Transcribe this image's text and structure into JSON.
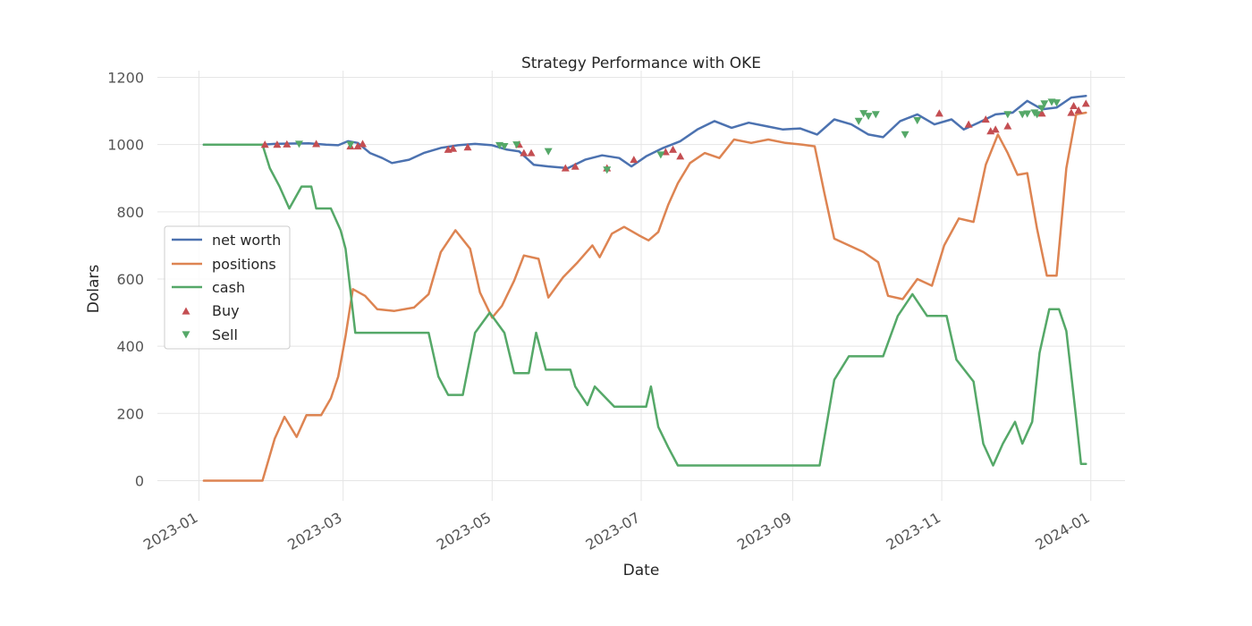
{
  "chart_data": {
    "type": "line",
    "title": "Strategy Performance with OKE",
    "xlabel": "Date",
    "ylabel": "Dolars",
    "xlim": [
      "2022-12-15",
      "2024-01-15"
    ],
    "ylim": [
      -60,
      1220
    ],
    "xticks": [
      "2023-01",
      "2023-03",
      "2023-05",
      "2023-07",
      "2023-09",
      "2023-11",
      "2024-01"
    ],
    "yticks": [
      0,
      200,
      400,
      600,
      800,
      1000,
      1200
    ],
    "grid": true,
    "legend_position": "center-left",
    "colors": {
      "net_worth": "#4c72b0",
      "positions": "#dd8452",
      "cash": "#55a868",
      "buy": "#c44e52",
      "sell": "#55a868",
      "grid": "#e5e5e5"
    },
    "series": [
      {
        "name": "net worth",
        "key": "net_worth",
        "points": [
          [
            "2023-01-03",
            1000
          ],
          [
            "2023-01-20",
            1000
          ],
          [
            "2023-01-27",
            1000
          ],
          [
            "2023-02-01",
            1002
          ],
          [
            "2023-02-08",
            1003
          ],
          [
            "2023-02-15",
            1004
          ],
          [
            "2023-02-22",
            1000
          ],
          [
            "2023-02-27",
            998
          ],
          [
            "2023-03-03",
            1010
          ],
          [
            "2023-03-07",
            1005
          ],
          [
            "2023-03-12",
            975
          ],
          [
            "2023-03-17",
            960
          ],
          [
            "2023-03-21",
            945
          ],
          [
            "2023-03-28",
            955
          ],
          [
            "2023-04-03",
            975
          ],
          [
            "2023-04-10",
            990
          ],
          [
            "2023-04-17",
            998
          ],
          [
            "2023-04-24",
            1002
          ],
          [
            "2023-05-01",
            998
          ],
          [
            "2023-05-07",
            985
          ],
          [
            "2023-05-12",
            980
          ],
          [
            "2023-05-18",
            940
          ],
          [
            "2023-05-24",
            935
          ],
          [
            "2023-06-01",
            930
          ],
          [
            "2023-06-08",
            955
          ],
          [
            "2023-06-15",
            968
          ],
          [
            "2023-06-22",
            960
          ],
          [
            "2023-06-27",
            935
          ],
          [
            "2023-07-03",
            965
          ],
          [
            "2023-07-10",
            990
          ],
          [
            "2023-07-17",
            1010
          ],
          [
            "2023-07-24",
            1045
          ],
          [
            "2023-07-31",
            1070
          ],
          [
            "2023-08-07",
            1050
          ],
          [
            "2023-08-14",
            1065
          ],
          [
            "2023-08-21",
            1055
          ],
          [
            "2023-08-28",
            1045
          ],
          [
            "2023-09-04",
            1048
          ],
          [
            "2023-09-11",
            1030
          ],
          [
            "2023-09-18",
            1075
          ],
          [
            "2023-09-25",
            1060
          ],
          [
            "2023-10-02",
            1030
          ],
          [
            "2023-10-08",
            1022
          ],
          [
            "2023-10-15",
            1070
          ],
          [
            "2023-10-22",
            1090
          ],
          [
            "2023-10-29",
            1060
          ],
          [
            "2023-11-05",
            1075
          ],
          [
            "2023-11-10",
            1045
          ],
          [
            "2023-11-16",
            1065
          ],
          [
            "2023-11-23",
            1090
          ],
          [
            "2023-11-30",
            1095
          ],
          [
            "2023-12-06",
            1130
          ],
          [
            "2023-12-12",
            1105
          ],
          [
            "2023-12-18",
            1110
          ],
          [
            "2023-12-24",
            1140
          ],
          [
            "2023-12-30",
            1145
          ]
        ]
      },
      {
        "name": "positions",
        "key": "positions",
        "points": [
          [
            "2023-01-03",
            0
          ],
          [
            "2023-01-27",
            0
          ],
          [
            "2023-02-01",
            125
          ],
          [
            "2023-02-05",
            190
          ],
          [
            "2023-02-10",
            130
          ],
          [
            "2023-02-14",
            195
          ],
          [
            "2023-02-20",
            195
          ],
          [
            "2023-02-24",
            245
          ],
          [
            "2023-02-27",
            310
          ],
          [
            "2023-03-02",
            430
          ],
          [
            "2023-03-05",
            570
          ],
          [
            "2023-03-10",
            550
          ],
          [
            "2023-03-15",
            510
          ],
          [
            "2023-03-22",
            505
          ],
          [
            "2023-03-30",
            515
          ],
          [
            "2023-04-05",
            555
          ],
          [
            "2023-04-10",
            680
          ],
          [
            "2023-04-16",
            745
          ],
          [
            "2023-04-22",
            690
          ],
          [
            "2023-04-26",
            560
          ],
          [
            "2023-05-01",
            485
          ],
          [
            "2023-05-05",
            520
          ],
          [
            "2023-05-10",
            595
          ],
          [
            "2023-05-14",
            670
          ],
          [
            "2023-05-20",
            660
          ],
          [
            "2023-05-24",
            545
          ],
          [
            "2023-05-30",
            605
          ],
          [
            "2023-06-05",
            650
          ],
          [
            "2023-06-11",
            700
          ],
          [
            "2023-06-14",
            665
          ],
          [
            "2023-06-19",
            735
          ],
          [
            "2023-06-24",
            755
          ],
          [
            "2023-06-30",
            730
          ],
          [
            "2023-07-04",
            715
          ],
          [
            "2023-07-08",
            740
          ],
          [
            "2023-07-12",
            820
          ],
          [
            "2023-07-16",
            885
          ],
          [
            "2023-07-21",
            945
          ],
          [
            "2023-07-27",
            975
          ],
          [
            "2023-08-02",
            960
          ],
          [
            "2023-08-08",
            1015
          ],
          [
            "2023-08-15",
            1005
          ],
          [
            "2023-08-22",
            1015
          ],
          [
            "2023-08-29",
            1005
          ],
          [
            "2023-09-05",
            1000
          ],
          [
            "2023-09-10",
            995
          ],
          [
            "2023-09-14",
            855
          ],
          [
            "2023-09-18",
            720
          ],
          [
            "2023-09-24",
            700
          ],
          [
            "2023-09-30",
            680
          ],
          [
            "2023-10-06",
            650
          ],
          [
            "2023-10-10",
            550
          ],
          [
            "2023-10-16",
            540
          ],
          [
            "2023-10-22",
            600
          ],
          [
            "2023-10-28",
            580
          ],
          [
            "2023-11-02",
            700
          ],
          [
            "2023-11-08",
            780
          ],
          [
            "2023-11-14",
            770
          ],
          [
            "2023-11-19",
            940
          ],
          [
            "2023-11-24",
            1030
          ],
          [
            "2023-11-28",
            975
          ],
          [
            "2023-12-02",
            910
          ],
          [
            "2023-12-06",
            915
          ],
          [
            "2023-12-10",
            750
          ],
          [
            "2023-12-14",
            610
          ],
          [
            "2023-12-18",
            610
          ],
          [
            "2023-12-22",
            930
          ],
          [
            "2023-12-26",
            1090
          ],
          [
            "2023-12-30",
            1095
          ]
        ]
      },
      {
        "name": "cash",
        "key": "cash",
        "points": [
          [
            "2023-01-03",
            1000
          ],
          [
            "2023-01-27",
            1000
          ],
          [
            "2023-01-30",
            930
          ],
          [
            "2023-02-03",
            875
          ],
          [
            "2023-02-07",
            810
          ],
          [
            "2023-02-12",
            875
          ],
          [
            "2023-02-16",
            875
          ],
          [
            "2023-02-18",
            810
          ],
          [
            "2023-02-24",
            810
          ],
          [
            "2023-02-28",
            745
          ],
          [
            "2023-03-02",
            690
          ],
          [
            "2023-03-06",
            440
          ],
          [
            "2023-04-05",
            440
          ],
          [
            "2023-04-09",
            310
          ],
          [
            "2023-04-13",
            255
          ],
          [
            "2023-04-19",
            255
          ],
          [
            "2023-04-24",
            440
          ],
          [
            "2023-04-30",
            500
          ],
          [
            "2023-05-06",
            440
          ],
          [
            "2023-05-10",
            320
          ],
          [
            "2023-05-16",
            320
          ],
          [
            "2023-05-19",
            440
          ],
          [
            "2023-05-23",
            330
          ],
          [
            "2023-06-02",
            330
          ],
          [
            "2023-06-04",
            280
          ],
          [
            "2023-06-09",
            225
          ],
          [
            "2023-06-12",
            280
          ],
          [
            "2023-06-20",
            220
          ],
          [
            "2023-07-03",
            220
          ],
          [
            "2023-07-05",
            280
          ],
          [
            "2023-07-08",
            160
          ],
          [
            "2023-07-12",
            100
          ],
          [
            "2023-07-16",
            45
          ],
          [
            "2023-09-12",
            45
          ],
          [
            "2023-09-18",
            300
          ],
          [
            "2023-09-24",
            370
          ],
          [
            "2023-10-08",
            370
          ],
          [
            "2023-10-14",
            490
          ],
          [
            "2023-10-20",
            555
          ],
          [
            "2023-10-26",
            490
          ],
          [
            "2023-11-03",
            490
          ],
          [
            "2023-11-07",
            360
          ],
          [
            "2023-11-14",
            295
          ],
          [
            "2023-11-18",
            110
          ],
          [
            "2023-11-22",
            45
          ],
          [
            "2023-11-26",
            110
          ],
          [
            "2023-12-01",
            175
          ],
          [
            "2023-12-04",
            110
          ],
          [
            "2023-12-08",
            175
          ],
          [
            "2023-12-11",
            380
          ],
          [
            "2023-12-15",
            510
          ],
          [
            "2023-12-19",
            510
          ],
          [
            "2023-12-22",
            445
          ],
          [
            "2023-12-26",
            185
          ],
          [
            "2023-12-28",
            50
          ],
          [
            "2023-12-30",
            50
          ]
        ]
      }
    ],
    "markers": [
      {
        "name": "Buy",
        "key": "buy",
        "shape": "triangle-up",
        "points": [
          [
            "2023-01-28",
            1000
          ],
          [
            "2023-02-02",
            1000
          ],
          [
            "2023-02-06",
            1001
          ],
          [
            "2023-02-18",
            1002
          ],
          [
            "2023-03-04",
            995
          ],
          [
            "2023-03-07",
            995
          ],
          [
            "2023-03-09",
            1002
          ],
          [
            "2023-04-13",
            985
          ],
          [
            "2023-04-15",
            988
          ],
          [
            "2023-04-21",
            992
          ],
          [
            "2023-05-12",
            1000
          ],
          [
            "2023-05-14",
            975
          ],
          [
            "2023-05-17",
            975
          ],
          [
            "2023-05-31",
            930
          ],
          [
            "2023-06-04",
            935
          ],
          [
            "2023-06-17",
            930
          ],
          [
            "2023-06-28",
            955
          ],
          [
            "2023-07-11",
            978
          ],
          [
            "2023-07-14",
            985
          ],
          [
            "2023-07-17",
            965
          ],
          [
            "2023-10-31",
            1093
          ],
          [
            "2023-11-12",
            1060
          ],
          [
            "2023-11-19",
            1075
          ],
          [
            "2023-11-21",
            1040
          ],
          [
            "2023-11-23",
            1045
          ],
          [
            "2023-11-28",
            1055
          ],
          [
            "2023-12-12",
            1093
          ],
          [
            "2023-12-24",
            1095
          ],
          [
            "2023-12-25",
            1115
          ],
          [
            "2023-12-27",
            1102
          ],
          [
            "2023-12-30",
            1122
          ]
        ]
      },
      {
        "name": "Sell",
        "key": "sell",
        "shape": "triangle-down",
        "points": [
          [
            "2023-02-11",
            1002
          ],
          [
            "2023-03-04",
            1000
          ],
          [
            "2023-05-04",
            998
          ],
          [
            "2023-05-06",
            995
          ],
          [
            "2023-05-11",
            1000
          ],
          [
            "2023-05-24",
            980
          ],
          [
            "2023-06-17",
            925
          ],
          [
            "2023-07-09",
            970
          ],
          [
            "2023-09-28",
            1070
          ],
          [
            "2023-09-30",
            1093
          ],
          [
            "2023-10-02",
            1085
          ],
          [
            "2023-10-05",
            1090
          ],
          [
            "2023-10-17",
            1030
          ],
          [
            "2023-10-22",
            1072
          ],
          [
            "2023-11-28",
            1090
          ],
          [
            "2023-12-04",
            1090
          ],
          [
            "2023-12-06",
            1092
          ],
          [
            "2023-12-09",
            1095
          ],
          [
            "2023-12-10",
            1090
          ],
          [
            "2023-12-12",
            1108
          ],
          [
            "2023-12-13",
            1122
          ],
          [
            "2023-12-16",
            1127
          ],
          [
            "2023-12-18",
            1125
          ]
        ]
      }
    ]
  }
}
